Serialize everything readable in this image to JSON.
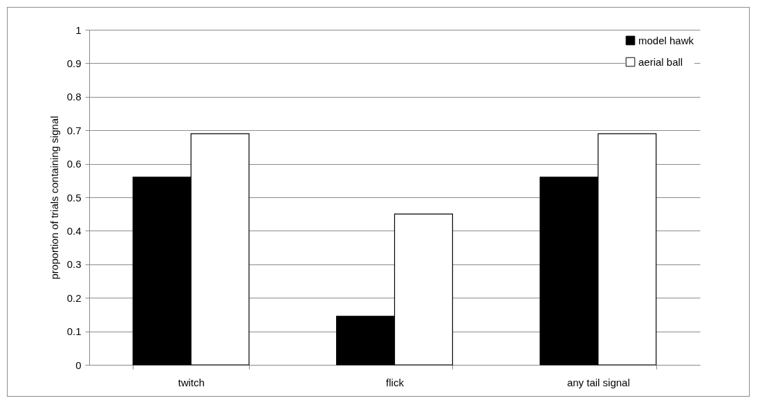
{
  "chart_data": {
    "type": "bar",
    "ylabel": "proportion of trials containing signal",
    "categories": [
      "twitch",
      "flick",
      "any tail signal"
    ],
    "series": [
      {
        "name": "model hawk",
        "color": "#000000",
        "values": [
          0.56,
          0.145,
          0.56
        ]
      },
      {
        "name": "aerial ball",
        "color": "#ffffff",
        "values": [
          0.69,
          0.45,
          0.69
        ]
      }
    ],
    "ylim": [
      0,
      1
    ],
    "yticks": [
      0,
      0.1,
      0.2,
      0.3,
      0.4,
      0.5,
      0.6,
      0.7,
      0.8,
      0.9,
      1
    ],
    "grid": "y",
    "legend": "top right"
  }
}
